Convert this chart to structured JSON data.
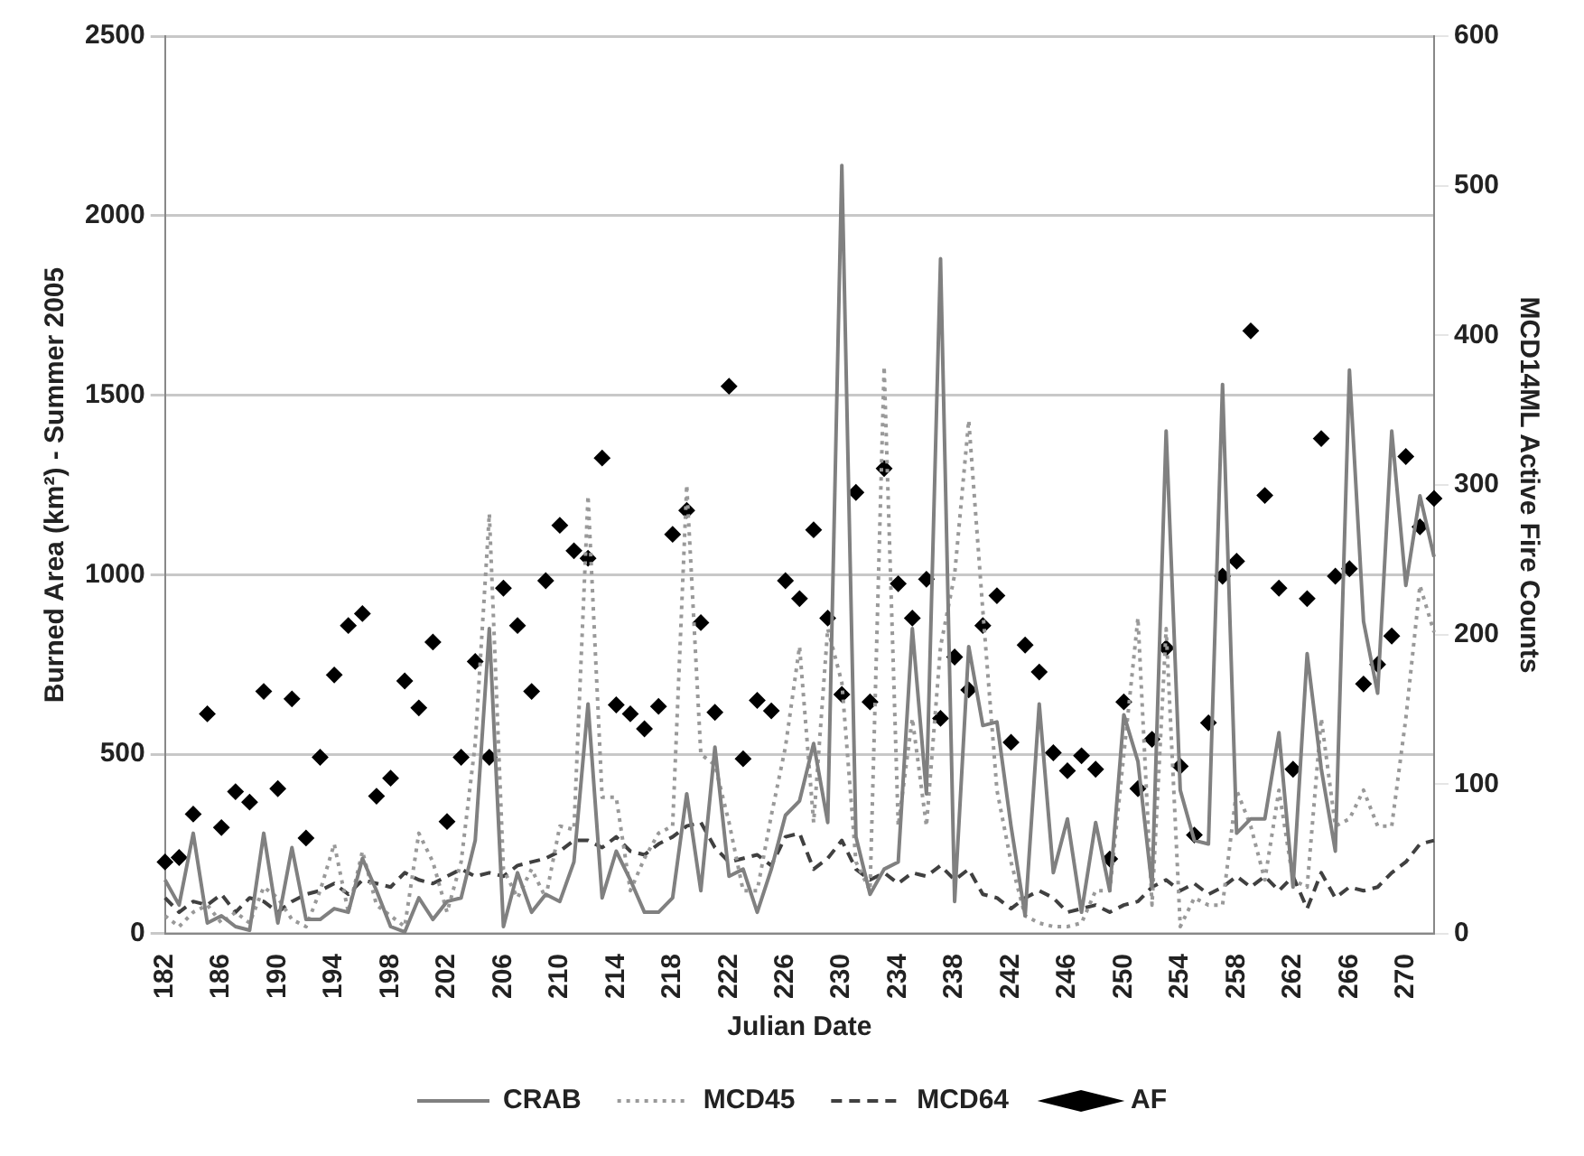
{
  "chart_data": {
    "type": "line",
    "xlabel": "Julian Date",
    "ylabel": "Burned Area (km²) - Summer 2005",
    "y2label": "MCD14ML Active Fire Counts",
    "categories": [
      "182",
      null,
      null,
      null,
      "186",
      null,
      null,
      null,
      "190",
      null,
      null,
      null,
      "194",
      null,
      null,
      null,
      "198",
      null,
      null,
      null,
      "202",
      null,
      null,
      null,
      "206",
      null,
      null,
      null,
      "210",
      null,
      null,
      null,
      "214",
      null,
      null,
      null,
      "218",
      null,
      null,
      null,
      "222",
      null,
      null,
      null,
      "226",
      null,
      null,
      null,
      "230",
      null,
      null,
      null,
      "234",
      null,
      null,
      null,
      "238",
      null,
      null,
      null,
      "242",
      null,
      null,
      null,
      "246",
      null,
      null,
      null,
      "250",
      null,
      null,
      null,
      "254",
      null,
      null,
      null,
      "258",
      null,
      null,
      null,
      "262",
      null,
      null,
      null,
      "266",
      null,
      null,
      null,
      "270",
      null,
      null
    ],
    "series": [
      {
        "name": "CRAB",
        "type": "line",
        "color": "#808080",
        "line_style": "solid",
        "marker": "none",
        "values": [
          150,
          80,
          280,
          30,
          50,
          20,
          10,
          280,
          30,
          240,
          40,
          40,
          70,
          60,
          210,
          120,
          20,
          5,
          100,
          40,
          90,
          100,
          260,
          850,
          20,
          170,
          60,
          110,
          90,
          200,
          640,
          100,
          230,
          150,
          60,
          60,
          100,
          390,
          120,
          520,
          160,
          180,
          60,
          180,
          330,
          370,
          530,
          310,
          2140,
          270,
          110,
          180,
          200,
          850,
          390,
          1880,
          90,
          800,
          580,
          590,
          300,
          50,
          640,
          170,
          320,
          60,
          310,
          120,
          610,
          480,
          130,
          1400,
          400,
          260,
          250,
          1530,
          280,
          320,
          320,
          560,
          130,
          780,
          460,
          230,
          1570,
          870,
          670,
          1400,
          970,
          1220,
          1050
        ]
      },
      {
        "name": "MCD45",
        "type": "line",
        "color": "#999999",
        "line_style": "dotted",
        "marker": "none",
        "values": [
          50,
          20,
          60,
          80,
          30,
          60,
          30,
          130,
          100,
          40,
          20,
          120,
          250,
          60,
          230,
          80,
          50,
          20,
          280,
          200,
          60,
          200,
          530,
          1170,
          180,
          100,
          180,
          100,
          300,
          290,
          1220,
          380,
          380,
          120,
          210,
          280,
          300,
          1250,
          500,
          470,
          310,
          120,
          120,
          330,
          520,
          800,
          310,
          850,
          700,
          200,
          120,
          1580,
          300,
          600,
          300,
          800,
          1000,
          1430,
          900,
          400,
          200,
          50,
          30,
          20,
          20,
          30,
          120,
          120,
          500,
          880,
          80,
          850,
          20,
          100,
          80,
          80,
          400,
          300,
          150,
          400,
          150,
          130,
          600,
          300,
          320,
          400,
          300,
          300,
          600,
          970,
          840
        ]
      },
      {
        "name": "MCD64",
        "type": "line",
        "color": "#404040",
        "line_style": "dashed",
        "marker": "none",
        "values": [
          100,
          60,
          90,
          80,
          110,
          60,
          100,
          90,
          60,
          90,
          110,
          120,
          140,
          110,
          150,
          140,
          130,
          170,
          150,
          140,
          160,
          180,
          160,
          170,
          160,
          190,
          200,
          210,
          230,
          260,
          260,
          240,
          270,
          230,
          220,
          250,
          270,
          300,
          310,
          240,
          200,
          210,
          220,
          190,
          270,
          280,
          180,
          210,
          260,
          180,
          150,
          170,
          140,
          170,
          160,
          190,
          150,
          180,
          110,
          100,
          70,
          100,
          120,
          100,
          60,
          70,
          80,
          60,
          80,
          90,
          130,
          150,
          120,
          140,
          110,
          130,
          160,
          130,
          160,
          120,
          160,
          70,
          170,
          100,
          130,
          120,
          130,
          170,
          200,
          250,
          260
        ]
      },
      {
        "name": "AF",
        "type": "scatter",
        "axis": "y2",
        "color": "#000000",
        "marker": "diamond",
        "values": [
          48,
          51,
          80,
          147,
          71,
          95,
          88,
          162,
          97,
          157,
          64,
          118,
          173,
          206,
          214,
          92,
          104,
          169,
          151,
          195,
          75,
          118,
          182,
          118,
          231,
          206,
          162,
          236,
          273,
          256,
          251,
          318,
          153,
          147,
          137,
          152,
          267,
          283,
          208,
          148,
          366,
          117,
          156,
          149,
          236,
          224,
          270,
          211,
          160,
          295,
          155,
          311,
          234,
          211,
          237,
          144,
          185,
          163,
          206,
          226,
          128,
          193,
          175,
          121,
          109,
          119,
          110,
          50,
          155,
          97,
          130,
          191,
          112,
          66,
          141,
          239,
          249,
          403,
          293,
          231,
          110,
          224,
          331,
          239,
          244,
          167,
          180,
          199,
          319,
          272,
          291
        ]
      }
    ],
    "ylim": [
      0,
      2500
    ],
    "yticks": [
      0,
      500,
      1000,
      1500,
      2000,
      2500
    ],
    "y2lim": [
      0,
      600
    ],
    "y2ticks": [
      0,
      100,
      200,
      300,
      400,
      500,
      600
    ],
    "grid": "y",
    "legend": "bottom"
  }
}
